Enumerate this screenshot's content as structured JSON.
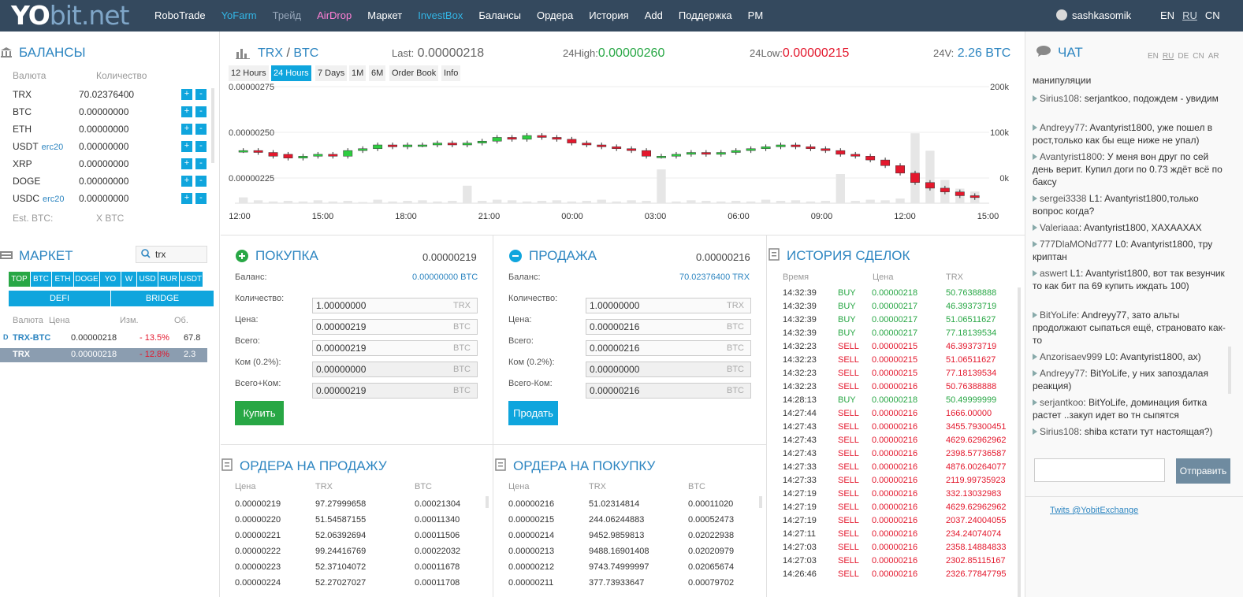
{
  "nav": {
    "logo_a": "YO",
    "logo_b": "bit.net",
    "items": [
      "RoboTrade",
      "YoFarm",
      "Трейд",
      "AirDrop",
      "Маркет",
      "InvestBox",
      "Балансы",
      "Ордера",
      "История",
      "Add",
      "Поддержка",
      "PM"
    ],
    "item_colors": [
      "#ffffff",
      "#33b5e5",
      "#95a5b8",
      "#ff80d5",
      "#ffffff",
      "#33b5e5",
      "#ffffff",
      "#ffffff",
      "#ffffff",
      "#ffffff",
      "#ffffff",
      "#ffffff"
    ],
    "user": "sashkasomik",
    "langs": [
      "EN",
      "RU",
      "CN"
    ]
  },
  "balances": {
    "title": "БАЛАНСЫ",
    "col1": "Валюта",
    "col2": "Количество",
    "rows": [
      {
        "c": "TRX",
        "s": "",
        "v": "70.02376400"
      },
      {
        "c": "BTC",
        "s": "",
        "v": "0.00000000"
      },
      {
        "c": "ETH",
        "s": "",
        "v": "0.00000000"
      },
      {
        "c": "USDT",
        "s": "erc20",
        "v": "0.00000000"
      },
      {
        "c": "XRP",
        "s": "",
        "v": "0.00000000"
      },
      {
        "c": "DOGE",
        "s": "",
        "v": "0.00000000"
      },
      {
        "c": "USDC",
        "s": "erc20",
        "v": "0.00000000"
      }
    ],
    "plus": "+",
    "minus": "-",
    "est_label": "Est. BTC:",
    "est_value": "X BTC"
  },
  "market": {
    "title": "МАРКЕТ",
    "search": "trx",
    "tabs": [
      "TOP",
      "BTC",
      "ETH",
      "DOGE",
      "YO",
      "W",
      "USD",
      "RUR",
      "USDT"
    ],
    "tabs2": [
      "DEFI",
      "BRIDGE"
    ],
    "cols": [
      "Валюта",
      "Цена",
      "Изм.",
      "Об."
    ],
    "rows": [
      {
        "m": "D",
        "p": "TRX-BTC",
        "price": "0.00000218",
        "ch": "- 13.5%",
        "vol": "67.8"
      },
      {
        "m": "",
        "p": "TRX",
        "price": "0.00000218",
        "ch": "- 12.8%",
        "vol": "2.3"
      }
    ]
  },
  "ticker": {
    "pair_a": "TRX",
    "sep": "/",
    "pair_b": "BTC",
    "last_label": "Last:",
    "last": "0.00000218",
    "high_label": "24High:",
    "high": "0.00000260",
    "low_label": "24Low:",
    "low": "0.00000215",
    "vol_label": "24V:",
    "vol": "2.26 BTC"
  },
  "chart_tabs": [
    "12 Hours",
    "24 Hours",
    "7 Days",
    "1M",
    "6M",
    "Order Book",
    "Info"
  ],
  "chart_data": {
    "type": "candlestick",
    "yticks": [
      "0.00000275",
      "0.00000250",
      "0.00000225"
    ],
    "y2ticks": [
      "200k",
      "100k",
      "0k"
    ],
    "xticks": [
      "12:00",
      "15:00",
      "18:00",
      "21:00",
      "00:00",
      "03:00",
      "06:00",
      "09:00",
      "12:00",
      "15:00"
    ],
    "ylim": [
      2.13e-06,
      2.75e-06
    ],
    "v2lim": [
      0,
      200
    ],
    "o": [
      2.41,
      2.41,
      2.4,
      2.39,
      2.37,
      2.38,
      2.39,
      2.38,
      2.41,
      2.42,
      2.44,
      2.43,
      2.44,
      2.44,
      2.45,
      2.44,
      2.45,
      2.46,
      2.48,
      2.47,
      2.49,
      2.48,
      2.47,
      2.45,
      2.44,
      2.43,
      2.42,
      2.41,
      2.38,
      2.38,
      2.39,
      2.4,
      2.39,
      2.4,
      2.41,
      2.42,
      2.43,
      2.44,
      2.43,
      2.42,
      2.41,
      2.39,
      2.38,
      2.36,
      2.33,
      2.29,
      2.24,
      2.21,
      2.19,
      2.17
    ],
    "c": [
      2.41,
      2.4,
      2.38,
      2.37,
      2.38,
      2.39,
      2.38,
      2.41,
      2.42,
      2.44,
      2.43,
      2.44,
      2.44,
      2.45,
      2.44,
      2.45,
      2.46,
      2.48,
      2.47,
      2.49,
      2.48,
      2.47,
      2.45,
      2.44,
      2.43,
      2.42,
      2.41,
      2.38,
      2.38,
      2.39,
      2.4,
      2.39,
      2.4,
      2.41,
      2.42,
      2.43,
      2.44,
      2.43,
      2.42,
      2.41,
      2.39,
      2.38,
      2.36,
      2.33,
      2.29,
      2.24,
      2.21,
      2.19,
      2.17,
      2.16
    ],
    "vol": [
      10,
      5,
      3,
      4,
      3,
      5,
      3,
      4,
      2,
      6,
      3,
      4,
      5,
      3,
      4,
      30,
      4,
      6,
      5,
      3,
      4,
      5,
      3,
      4,
      6,
      3,
      5,
      4,
      58,
      3,
      5,
      4,
      3,
      4,
      3,
      6,
      4,
      5,
      3,
      4,
      50,
      4,
      6,
      5,
      8,
      120,
      90,
      40,
      25,
      20
    ]
  },
  "buy": {
    "title": "ПОКУПКА",
    "price": "0.00000219",
    "bal_label": "Баланс:",
    "bal": "0.00000000 BTC",
    "rows": [
      {
        "l": "Количество:",
        "v": "1.00000000",
        "u": "TRX"
      },
      {
        "l": "Цена:",
        "v": "0.00000219",
        "u": "BTC"
      },
      {
        "l": "Всего:",
        "v": "0.00000219",
        "u": "BTC"
      },
      {
        "l": "Ком (0.2%):",
        "v": "0.00000000",
        "u": "BTC"
      },
      {
        "l": "Всего+Ком:",
        "v": "0.00000219",
        "u": "BTC"
      }
    ],
    "btn": "Купить"
  },
  "sell": {
    "title": "ПРОДАЖА",
    "price": "0.00000216",
    "bal_label": "Баланс:",
    "bal": "70.02376400 TRX",
    "rows": [
      {
        "l": "Количество:",
        "v": "1.00000000",
        "u": "TRX"
      },
      {
        "l": "Цена:",
        "v": "0.00000216",
        "u": "BTC"
      },
      {
        "l": "Всего:",
        "v": "0.00000216",
        "u": "BTC"
      },
      {
        "l": "Ком (0.2%):",
        "v": "0.00000000",
        "u": "BTC"
      },
      {
        "l": "Всего-Ком:",
        "v": "0.00000216",
        "u": "BTC"
      }
    ],
    "btn": "Продать"
  },
  "sell_orders": {
    "title": "ОРДЕРА НА ПРОДАЖУ",
    "cols": [
      "Цена",
      "TRX",
      "BTC"
    ],
    "rows": [
      [
        "0.00000219",
        "97.27999658",
        "0.00021304"
      ],
      [
        "0.00000220",
        "51.54587155",
        "0.00011340"
      ],
      [
        "0.00000221",
        "52.06392694",
        "0.00011506"
      ],
      [
        "0.00000222",
        "99.24416769",
        "0.00022032"
      ],
      [
        "0.00000223",
        "52.37104072",
        "0.00011678"
      ],
      [
        "0.00000224",
        "52.27027027",
        "0.00011708"
      ]
    ]
  },
  "buy_orders": {
    "title": "ОРДЕРА НА ПОКУПКУ",
    "cols": [
      "Цена",
      "TRX",
      "BTC"
    ],
    "rows": [
      [
        "0.00000216",
        "51.02314814",
        "0.00011020"
      ],
      [
        "0.00000215",
        "244.06244883",
        "0.00052473"
      ],
      [
        "0.00000214",
        "9452.9859813",
        "0.02022938"
      ],
      [
        "0.00000213",
        "9488.16901408",
        "0.02020979"
      ],
      [
        "0.00000212",
        "9743.74999997",
        "0.02065674"
      ],
      [
        "0.00000211",
        "377.73933647",
        "0.00079702"
      ]
    ]
  },
  "history": {
    "title": "ИСТОРИЯ СДЕЛОК",
    "cols": [
      "Время",
      "Цена",
      "TRX"
    ],
    "rows": [
      [
        "14:32:39",
        "BUY",
        "0.00000218",
        "50.76388888"
      ],
      [
        "14:32:39",
        "BUY",
        "0.00000217",
        "46.39373719"
      ],
      [
        "14:32:39",
        "BUY",
        "0.00000217",
        "51.06511627"
      ],
      [
        "14:32:39",
        "BUY",
        "0.00000217",
        "77.18139534"
      ],
      [
        "14:32:23",
        "SELL",
        "0.00000215",
        "46.39373719"
      ],
      [
        "14:32:23",
        "SELL",
        "0.00000215",
        "51.06511627"
      ],
      [
        "14:32:23",
        "SELL",
        "0.00000215",
        "77.18139534"
      ],
      [
        "14:32:23",
        "SELL",
        "0.00000216",
        "50.76388888"
      ],
      [
        "14:28:13",
        "BUY",
        "0.00000218",
        "50.49999999"
      ],
      [
        "14:27:44",
        "SELL",
        "0.00000216",
        "1666.00000"
      ],
      [
        "14:27:43",
        "SELL",
        "0.00000216",
        "3455.79300451"
      ],
      [
        "14:27:43",
        "SELL",
        "0.00000216",
        "4629.62962962"
      ],
      [
        "14:27:43",
        "SELL",
        "0.00000216",
        "2398.57736587"
      ],
      [
        "14:27:33",
        "SELL",
        "0.00000216",
        "4876.00264077"
      ],
      [
        "14:27:33",
        "SELL",
        "0.00000216",
        "2119.99735923"
      ],
      [
        "14:27:19",
        "SELL",
        "0.00000216",
        "332.13032983"
      ],
      [
        "14:27:19",
        "SELL",
        "0.00000216",
        "4629.62962962"
      ],
      [
        "14:27:19",
        "SELL",
        "0.00000216",
        "2037.24004055"
      ],
      [
        "14:27:11",
        "SELL",
        "0.00000216",
        "234.24074074"
      ],
      [
        "14:27:03",
        "SELL",
        "0.00000216",
        "2358.14884833"
      ],
      [
        "14:27:03",
        "SELL",
        "0.00000216",
        "2302.85115167"
      ],
      [
        "14:26:46",
        "SELL",
        "0.00000216",
        "2326.77847795"
      ]
    ]
  },
  "chat": {
    "title": "ЧАТ",
    "langs": [
      "EN",
      "RU",
      "DE",
      "CN",
      "AR"
    ],
    "top_line": "манипуляции",
    "messages": [
      {
        "n": "Sirius108",
        "t": ": serjantkoo, подождем - увидим"
      },
      {
        "n": "Andreyy77",
        "t": ": Avantyrist1800, уже пошел в рост,только как бы еще ниже не упал)"
      },
      {
        "n": "Avantyrist1800",
        "t": ": У меня вон друг по сей день верит. Купил доги по 0.73 ждёт всё по баксу"
      },
      {
        "n": "sergei3338",
        "t": " L1: Avantyrist1800,только вопрос когда?"
      },
      {
        "n": "Valeriaaa",
        "t": ": Avantyrist1800, ХАХААХАХ"
      },
      {
        "n": "777DlaMONd777",
        "t": " L0: Avantyrist1800, тру криптан"
      },
      {
        "n": "aswert",
        "t": " L1: Avantyrist1800, вот так везунчик то как бит па 69 купить иждать 100)"
      },
      {
        "n": "BitYoLife",
        "t": ": Andreyy77, зато альты продолжают сыпаться ещё, страновато как-то"
      },
      {
        "n": "Anzorisaev999",
        "t": " L0: Avantyrist1800, ах)"
      },
      {
        "n": "Andreyy77",
        "t": ": BitYoLife, у них запоздалая реакция)"
      },
      {
        "n": "serjantkoo",
        "t": ": BitYoLife, доминация битка растет ..закуп идет во тн сыпятся"
      },
      {
        "n": "Sirius108",
        "t": ": shiba кстати тут настоящая?)"
      }
    ],
    "send": "Отправить",
    "twits": "Twits @YobitExchange"
  }
}
